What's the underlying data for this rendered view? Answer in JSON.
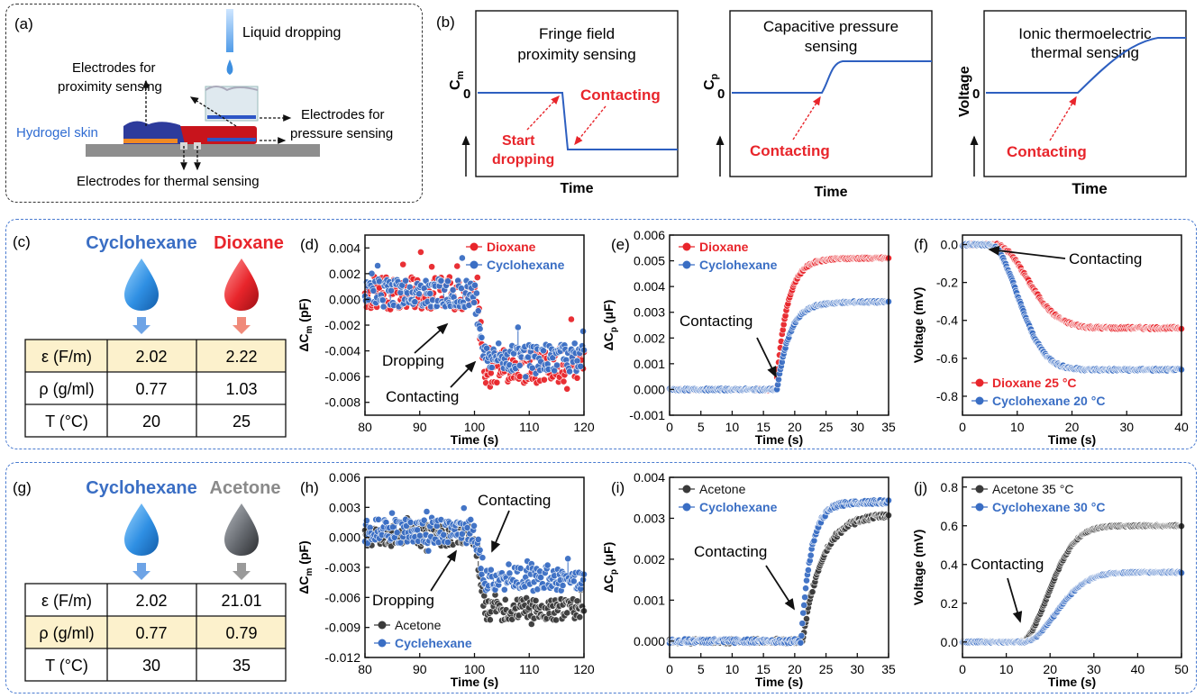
{
  "panel_a": {
    "label": "(a)",
    "liquid": "Liquid dropping",
    "prox": [
      "Electrodes for",
      "proximity sensing"
    ],
    "skin": "Hydrogel skin",
    "press": [
      "Electrodes for",
      "pressure sensing"
    ],
    "thermal": "Electrodes for thermal sensing"
  },
  "panel_b": {
    "label": "(b)",
    "charts": [
      {
        "title": [
          "Fringe field",
          "proximity sensing"
        ],
        "ylabel": "C",
        "ysub": "m",
        "zero": "0",
        "xlabel": "Time",
        "notes": [
          "Contacting",
          "Start",
          "dropping"
        ]
      },
      {
        "title": [
          "Capacitive pressure",
          "sensing"
        ],
        "ylabel": "C",
        "ysub": "p",
        "zero": "0",
        "xlabel": "Time",
        "notes": [
          "Contacting"
        ]
      },
      {
        "title": [
          "Ionic thermoelectric",
          "thermal sensing"
        ],
        "ylabel": "Voltage",
        "zero": "0",
        "xlabel": "Time",
        "notes": [
          "Contacting"
        ]
      }
    ]
  },
  "table_c": {
    "label": "(c)",
    "liquids": [
      "Cyclohexane",
      "Dioxane"
    ],
    "rows": [
      {
        "prop": "ε (F/m)",
        "v1": "2.02",
        "v2": "2.22",
        "highlight": true
      },
      {
        "prop": "ρ (g/ml)",
        "v1": "0.77",
        "v2": "1.03",
        "highlight": false
      },
      {
        "prop": "T (°C)",
        "v1": "20",
        "v2": "25",
        "highlight": false
      }
    ]
  },
  "table_g": {
    "label": "(g)",
    "liquids": [
      "Cyclohexane",
      "Acetone"
    ],
    "rows": [
      {
        "prop": "ε (F/m)",
        "v1": "2.02",
        "v2": "21.01",
        "highlight": false
      },
      {
        "prop": "ρ (g/ml)",
        "v1": "0.77",
        "v2": "0.79",
        "highlight": true
      },
      {
        "prop": "T (°C)",
        "v1": "30",
        "v2": "35",
        "highlight": false
      }
    ]
  },
  "colors": {
    "red": "#e8252b",
    "blue": "#3a6ec4",
    "gray": "#3a3a3a",
    "arrowRed": "#e8252b",
    "highlight": "#fcf1cc"
  },
  "chart_data": [
    {
      "id": "d",
      "label": "(d)",
      "type": "scatter",
      "xlabel": "Time (s)",
      "ylabel": "ΔC",
      "ysub": "m",
      "yunit": " (pF)",
      "xlim": [
        80,
        120
      ],
      "ylim": [
        -0.009,
        0.005
      ],
      "xticks": [
        80,
        90,
        100,
        110,
        120
      ],
      "yticks": [
        -0.008,
        -0.006,
        -0.004,
        -0.002,
        0.0,
        0.002,
        0.004
      ],
      "yticklabels": [
        "-0.008",
        "-0.006",
        "-0.004",
        "-0.002",
        "0.000",
        "0.002",
        "0.004"
      ],
      "series": [
        {
          "name": "Dioxane",
          "color": "red",
          "shape": "step",
          "t0": 100,
          "t1": 102,
          "before": 0.0005,
          "after": -0.0052,
          "noise": 0.0013,
          "spikes": 0.006
        },
        {
          "name": "Cyclohexane",
          "color": "blue",
          "shape": "step",
          "t0": 100,
          "t1": 102,
          "before": 0.0005,
          "after": -0.0045,
          "noise": 0.0011,
          "spikes": 0.004
        }
      ],
      "legend": "top-right",
      "annotations": [
        "Dropping",
        "Contacting"
      ]
    },
    {
      "id": "e",
      "label": "(e)",
      "type": "scatter",
      "xlabel": "Time (s)",
      "ylabel": "ΔC",
      "ysub": "p",
      "yunit": " (μF)",
      "xlim": [
        0,
        35
      ],
      "ylim": [
        -0.001,
        0.006
      ],
      "xticks": [
        0,
        5,
        10,
        15,
        20,
        25,
        30,
        35
      ],
      "yticks": [
        -0.001,
        0.0,
        0.001,
        0.002,
        0.003,
        0.004,
        0.005,
        0.006
      ],
      "yticklabels": [
        "-0.001",
        "0.000",
        "0.001",
        "0.002",
        "0.003",
        "0.004",
        "0.005",
        "0.006"
      ],
      "series": [
        {
          "name": "Dioxane",
          "color": "red",
          "shape": "sat",
          "t0": 17.0,
          "before": 0.0,
          "after": 0.0051,
          "tau": 1.8,
          "noise": 4e-05
        },
        {
          "name": "Cyclohexane",
          "color": "blue",
          "shape": "sat",
          "t0": 17.2,
          "before": 0.0,
          "after": 0.0034,
          "tau": 2.0,
          "noise": 4e-05
        }
      ],
      "legend": "top-left",
      "annotations": [
        "Contacting"
      ]
    },
    {
      "id": "f",
      "label": "(f)",
      "type": "scatter",
      "xlabel": "Time (s)",
      "ylabel": "Voltage (mV)",
      "xlim": [
        0,
        40
      ],
      "ylim": [
        -0.9,
        0.05
      ],
      "xticks": [
        0,
        10,
        20,
        30,
        40
      ],
      "yticks": [
        -0.8,
        -0.6,
        -0.4,
        -0.2,
        0.0
      ],
      "yticklabels": [
        "-0.8",
        "-0.6",
        "-0.4",
        "-0.2",
        "0.0"
      ],
      "series": [
        {
          "name": "Dioxane 25 °C",
          "color": "red",
          "shape": "sig",
          "t0": 6,
          "before": 0.0,
          "after": -0.44,
          "k": 8,
          "noise": 0.006
        },
        {
          "name": "Cyclohexane 20 °C",
          "color": "blue",
          "shape": "sig",
          "t0": 5,
          "before": 0.0,
          "after": -0.66,
          "k": 7,
          "noise": 0.006
        }
      ],
      "legend": "bottom-left",
      "annotations": [
        "Contacting"
      ]
    },
    {
      "id": "h",
      "label": "(h)",
      "type": "scatter",
      "xlabel": "Time (s)",
      "ylabel": "ΔC",
      "ysub": "m",
      "yunit": " (pF)",
      "xlim": [
        80,
        120
      ],
      "ylim": [
        -0.012,
        0.006
      ],
      "xticks": [
        80,
        90,
        100,
        110,
        120
      ],
      "yticks": [
        -0.012,
        -0.009,
        -0.006,
        -0.003,
        0.0,
        0.003,
        0.006
      ],
      "yticklabels": [
        "-0.012",
        "-0.009",
        "-0.006",
        "-0.003",
        "0.000",
        "0.003",
        "0.006"
      ],
      "series": [
        {
          "name": "Acetone",
          "color": "gray",
          "shape": "step",
          "t0": 100,
          "t1": 102,
          "before": 0.0002,
          "after": -0.0072,
          "noise": 0.0011,
          "spikes": 0.002
        },
        {
          "name": "Cyclehexane",
          "color": "blue",
          "shape": "step",
          "t0": 100,
          "t1": 102,
          "before": 0.0006,
          "after": -0.0042,
          "noise": 0.0012,
          "spikes": 0.004
        }
      ],
      "legend": "bottom-left",
      "annotations": [
        "Dropping",
        "Contacting"
      ]
    },
    {
      "id": "i",
      "label": "(i)",
      "type": "scatter",
      "xlabel": "Time (s)",
      "ylabel": "ΔC",
      "ysub": "p",
      "yunit": " (μF)",
      "xlim": [
        0,
        35
      ],
      "ylim": [
        -0.0004,
        0.004
      ],
      "xticks": [
        0,
        5,
        10,
        15,
        20,
        25,
        30,
        35
      ],
      "yticks": [
        0.0,
        0.001,
        0.002,
        0.003,
        0.004
      ],
      "yticklabels": [
        "0.000",
        "0.001",
        "0.002",
        "0.003",
        "0.004"
      ],
      "series": [
        {
          "name": "Acetone",
          "color": "gray",
          "shape": "sat",
          "t0": 21.3,
          "before": 0.0,
          "after": 0.0031,
          "tau": 3.0,
          "noise": 6e-05
        },
        {
          "name": "Cyclohexane",
          "color": "blue",
          "shape": "sat",
          "t0": 21.0,
          "before": 0.0,
          "after": 0.0034,
          "tau": 1.6,
          "noise": 5e-05
        }
      ],
      "legend": "top-left",
      "annotations": [
        "Contacting"
      ]
    },
    {
      "id": "j",
      "label": "(j)",
      "type": "scatter",
      "xlabel": "Time (s)",
      "ylabel": "Voltage (mV)",
      "xlim": [
        0,
        50
      ],
      "ylim": [
        -0.08,
        0.85
      ],
      "xticks": [
        0,
        10,
        20,
        30,
        40,
        50
      ],
      "yticks": [
        0.0,
        0.2,
        0.4,
        0.6,
        0.8
      ],
      "yticklabels": [
        "0.0",
        "0.2",
        "0.4",
        "0.6",
        "0.8"
      ],
      "series": [
        {
          "name": "Acetone 35 °C",
          "color": "gray",
          "shape": "sig",
          "t0": 13,
          "before": 0.0,
          "after": 0.6,
          "k": 9,
          "noise": 0.004
        },
        {
          "name": "Cyclohexane 30 °C",
          "color": "blue",
          "shape": "sig",
          "t0": 14,
          "before": 0.0,
          "after": 0.36,
          "k": 10,
          "noise": 0.004
        }
      ],
      "legend": "top-left",
      "annotations": [
        "Contacting"
      ]
    }
  ]
}
